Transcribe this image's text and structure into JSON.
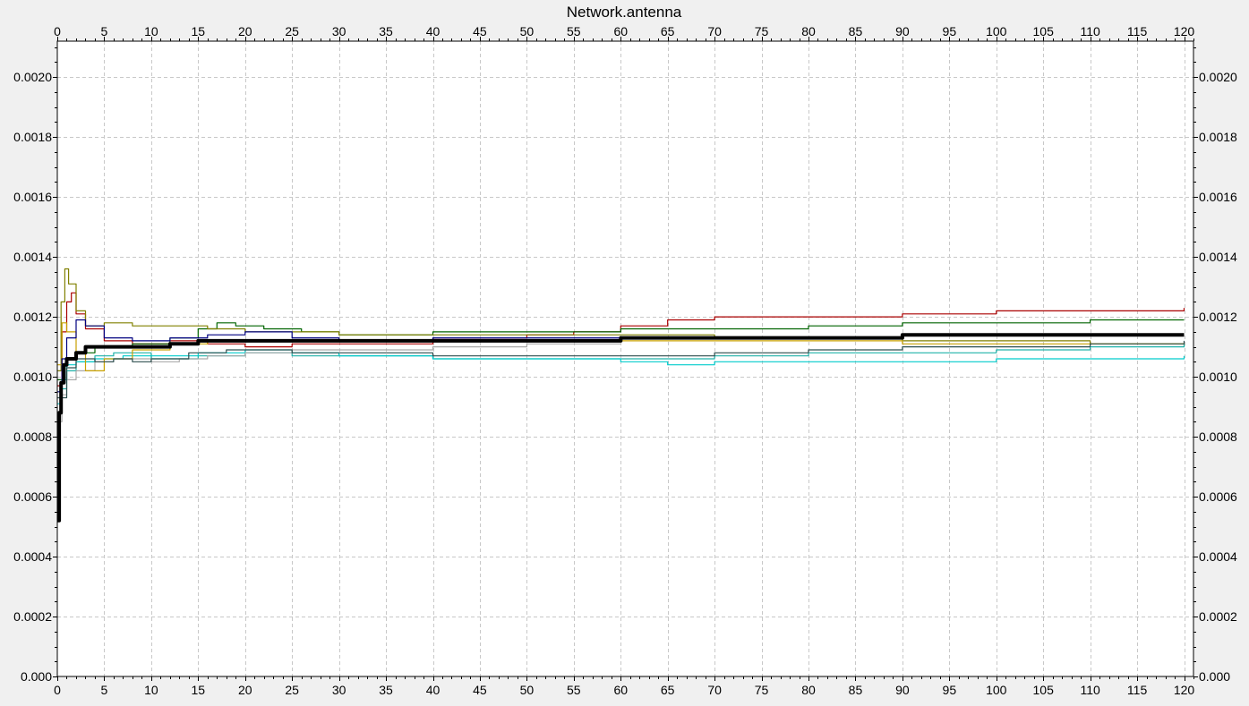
{
  "chart_data": {
    "type": "line",
    "title": "Network.antenna",
    "xlabel": "",
    "ylabel": "",
    "xlim": [
      0,
      121
    ],
    "ylim": [
      0,
      0.00212
    ],
    "x_ticks": [
      0,
      5,
      10,
      15,
      20,
      25,
      30,
      35,
      40,
      45,
      50,
      55,
      60,
      65,
      70,
      75,
      80,
      85,
      90,
      95,
      100,
      105,
      110,
      115,
      120
    ],
    "x_tick_labels": [
      "0",
      "5",
      "10",
      "15",
      "20",
      "25",
      "30",
      "35",
      "40",
      "45",
      "50",
      "55",
      "60",
      "65",
      "70",
      "75",
      "80",
      "85",
      "90",
      "95",
      "100",
      "105",
      "110",
      "115",
      "120"
    ],
    "y_ticks": [
      0,
      0.0002,
      0.0004,
      0.0006,
      0.0008,
      0.001,
      0.0012,
      0.0014,
      0.0016,
      0.0018,
      0.002
    ],
    "y_tick_labels_left": [
      "0.000",
      "0.0002",
      "0.0004",
      "0.0006",
      "0.0008",
      "0.0010",
      "0.0012",
      "0.0014",
      "0.0016",
      "0.0018",
      "0.0020"
    ],
    "y_tick_labels_right": [
      "0.000",
      "0.0002",
      "0.0004",
      "0.0006",
      "0.0008",
      "0.0010",
      "0.0012",
      "0.0014",
      "0.0016",
      "0.0018",
      "0.0020"
    ],
    "grid": true,
    "grid_style": "dashed",
    "axes_mirrored": true,
    "series": [
      {
        "color": "#aa0000",
        "width": 1.2,
        "x": [
          0,
          0.5,
          1,
          1.5,
          2,
          3,
          5,
          8,
          12,
          16,
          20,
          25,
          30,
          40,
          50,
          55,
          60,
          65,
          70,
          80,
          90,
          100,
          110,
          120
        ],
        "y": [
          0.00097,
          0.00115,
          0.00125,
          0.00128,
          0.00121,
          0.00116,
          0.00112,
          0.00111,
          0.00112,
          0.00111,
          0.0011,
          0.00111,
          0.00111,
          0.00113,
          0.00114,
          0.00115,
          0.00117,
          0.00119,
          0.0012,
          0.0012,
          0.00121,
          0.00122,
          0.00122,
          0.00123
        ]
      },
      {
        "color": "#006400",
        "width": 1.2,
        "x": [
          0,
          1,
          2,
          4,
          8,
          12,
          15,
          17,
          19,
          22,
          26,
          30,
          40,
          50,
          60,
          70,
          80,
          90,
          100,
          110,
          120
        ],
        "y": [
          0.00099,
          0.00106,
          0.00108,
          0.0011,
          0.00111,
          0.00113,
          0.00116,
          0.00118,
          0.00117,
          0.00116,
          0.00115,
          0.00114,
          0.00115,
          0.00115,
          0.00116,
          0.00116,
          0.00117,
          0.00118,
          0.00118,
          0.00119,
          0.00119
        ]
      },
      {
        "color": "#808000",
        "width": 1.2,
        "x": [
          0,
          0.4,
          0.8,
          1.2,
          2,
          3,
          5,
          8,
          12,
          16,
          20,
          25,
          30,
          40,
          50,
          60,
          70,
          80,
          90,
          100,
          110,
          120
        ],
        "y": [
          0.00102,
          0.00125,
          0.00136,
          0.00131,
          0.00122,
          0.00117,
          0.00118,
          0.00117,
          0.00117,
          0.00116,
          0.00115,
          0.00115,
          0.00114,
          0.00114,
          0.00114,
          0.00114,
          0.00113,
          0.00113,
          0.00112,
          0.00112,
          0.00111,
          0.0011
        ]
      },
      {
        "color": "#20b2aa",
        "width": 1.2,
        "x": [
          0,
          0.5,
          1,
          2,
          4,
          6,
          10,
          15,
          20,
          25,
          30,
          40,
          50,
          60,
          70,
          80,
          90,
          100,
          110,
          120
        ],
        "y": [
          0.00088,
          0.00096,
          0.00102,
          0.00105,
          0.00107,
          0.00108,
          0.00106,
          0.00107,
          0.00108,
          0.00107,
          0.00107,
          0.00106,
          0.00106,
          0.00106,
          0.00107,
          0.00108,
          0.00108,
          0.00109,
          0.0011,
          0.00111
        ]
      },
      {
        "color": "#00cccc",
        "width": 1.2,
        "x": [
          0,
          0.5,
          1,
          2,
          4,
          7,
          10,
          15,
          20,
          25,
          30,
          40,
          50,
          60,
          65,
          70,
          80,
          90,
          100,
          110,
          120
        ],
        "y": [
          0.00091,
          0.00099,
          0.00104,
          0.00105,
          0.00106,
          0.00107,
          0.00107,
          0.00108,
          0.00109,
          0.00108,
          0.00107,
          0.00106,
          0.00106,
          0.00105,
          0.00104,
          0.00105,
          0.00105,
          0.00105,
          0.00106,
          0.00106,
          0.00107
        ]
      },
      {
        "color": "#a9a9a9",
        "width": 1.2,
        "x": [
          0,
          0.5,
          1,
          2,
          4,
          6,
          10,
          13,
          16,
          20,
          25,
          30,
          40,
          50,
          60
        ],
        "y": [
          0.00085,
          0.00094,
          0.00099,
          0.00102,
          0.00105,
          0.00106,
          0.00105,
          0.00106,
          0.00107,
          0.00108,
          0.00109,
          0.00109,
          0.0011,
          0.00111,
          0.00111
        ]
      },
      {
        "color": "#c8a000",
        "width": 1.2,
        "x": [
          0,
          0.5,
          1,
          2,
          3,
          5,
          8,
          12,
          16,
          20,
          25,
          30,
          40,
          50,
          60,
          70,
          80,
          90,
          100,
          110,
          120
        ],
        "y": [
          0.00104,
          0.00118,
          0.00115,
          0.00108,
          0.00102,
          0.00106,
          0.00109,
          0.00111,
          0.00112,
          0.00112,
          0.00112,
          0.00112,
          0.00112,
          0.00112,
          0.00112,
          0.00112,
          0.00112,
          0.00111,
          0.00111,
          0.00111,
          0.00111
        ]
      },
      {
        "color": "#000080",
        "width": 1.2,
        "x": [
          0,
          0.5,
          1,
          2,
          3,
          5,
          8,
          12,
          16,
          20,
          25,
          30,
          40,
          50,
          60,
          70,
          80,
          90,
          100,
          110,
          120
        ],
        "y": [
          0.00095,
          0.00106,
          0.00113,
          0.00119,
          0.00117,
          0.00113,
          0.00112,
          0.00113,
          0.00114,
          0.00115,
          0.00113,
          0.00112,
          0.00113,
          0.00113,
          0.00113,
          0.00113,
          0.00113,
          0.00114,
          0.00114,
          0.00114,
          0.00114
        ]
      },
      {
        "color": "#2e4f4f",
        "width": 1.2,
        "x": [
          0,
          1,
          2,
          4,
          6,
          8,
          10,
          14,
          18,
          20,
          25,
          30,
          40,
          50,
          60,
          70,
          80,
          90,
          100,
          110,
          120
        ],
        "y": [
          0.00093,
          0.00103,
          0.00106,
          0.00105,
          0.00106,
          0.00105,
          0.00106,
          0.00108,
          0.00109,
          0.00109,
          0.00108,
          0.00108,
          0.00107,
          0.00107,
          0.00107,
          0.00108,
          0.00109,
          0.0011,
          0.0011,
          0.00111,
          0.00112
        ]
      },
      {
        "color": "#000000",
        "width": 4,
        "x": [
          0,
          0.2,
          0.4,
          0.7,
          1,
          2,
          3,
          4,
          5,
          8,
          10,
          12,
          15,
          20,
          25,
          30,
          40,
          50,
          60,
          70,
          80,
          90,
          100,
          110,
          120
        ],
        "y": [
          0.00052,
          0.00088,
          0.00098,
          0.00104,
          0.00106,
          0.00108,
          0.0011,
          0.0011,
          0.0011,
          0.0011,
          0.0011,
          0.00111,
          0.00112,
          0.00112,
          0.00112,
          0.00112,
          0.00112,
          0.00112,
          0.00113,
          0.00113,
          0.00113,
          0.00114,
          0.00114,
          0.00114,
          0.00114
        ]
      }
    ]
  }
}
